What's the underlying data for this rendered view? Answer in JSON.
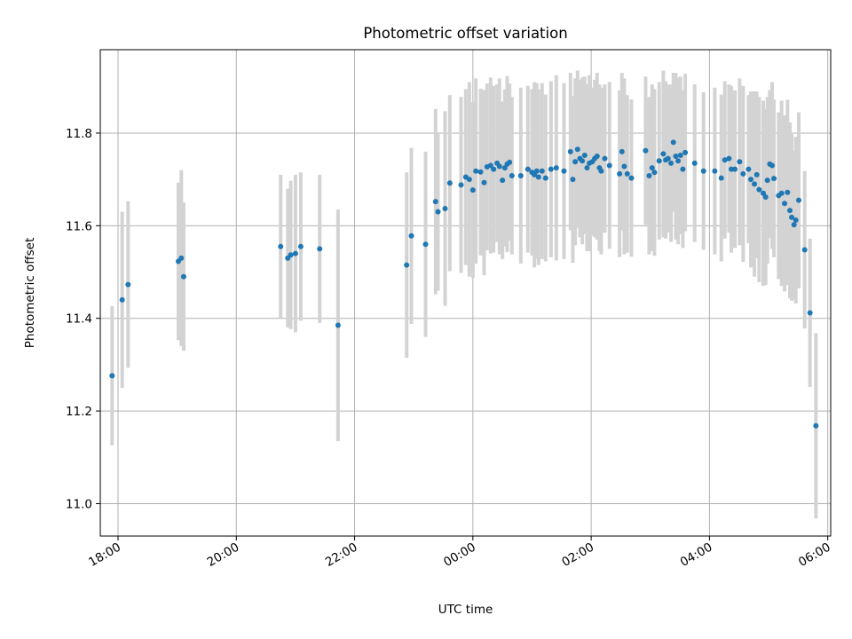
{
  "chart_data": {
    "type": "scatter",
    "title": "Photometric offset variation",
    "xlabel": "UTC time",
    "ylabel": "Photometric offset",
    "x_unit": "hours since 18:00 UTC",
    "xlim": [
      -0.3,
      12.05
    ],
    "ylim": [
      10.93,
      11.98
    ],
    "grid": true,
    "x_ticks": [
      {
        "label": "18:00",
        "value": 0
      },
      {
        "label": "20:00",
        "value": 2
      },
      {
        "label": "22:00",
        "value": 4
      },
      {
        "label": "00:00",
        "value": 6
      },
      {
        "label": "02:00",
        "value": 8
      },
      {
        "label": "04:00",
        "value": 10
      },
      {
        "label": "06:00",
        "value": 12
      }
    ],
    "y_ticks": [
      {
        "label": "11.0",
        "value": 11.0
      },
      {
        "label": "11.2",
        "value": 11.2
      },
      {
        "label": "11.4",
        "value": 11.4
      },
      {
        "label": "11.6",
        "value": 11.6
      },
      {
        "label": "11.8",
        "value": 11.8
      }
    ],
    "points": [
      [
        -0.1,
        11.276,
        0.15
      ],
      [
        0.07,
        11.44,
        0.19
      ],
      [
        0.17,
        11.473,
        0.18
      ],
      [
        1.02,
        11.523,
        0.17
      ],
      [
        1.07,
        11.53,
        0.19
      ],
      [
        1.11,
        11.49,
        0.16
      ],
      [
        2.75,
        11.555,
        0.155
      ],
      [
        2.87,
        11.53,
        0.15
      ],
      [
        2.92,
        11.537,
        0.16
      ],
      [
        3.0,
        11.54,
        0.17
      ],
      [
        3.09,
        11.555,
        0.16
      ],
      [
        3.41,
        11.55,
        0.16
      ],
      [
        3.72,
        11.385,
        0.25
      ],
      [
        4.88,
        11.515,
        0.2
      ],
      [
        4.96,
        11.578,
        0.19
      ],
      [
        5.2,
        11.56,
        0.2
      ],
      [
        5.37,
        11.652,
        0.2
      ],
      [
        5.41,
        11.63,
        0.17
      ],
      [
        5.53,
        11.637,
        0.21
      ],
      [
        5.61,
        11.692,
        0.19
      ],
      [
        5.8,
        11.688,
        0.19
      ],
      [
        5.88,
        11.705,
        0.19
      ],
      [
        5.94,
        11.7,
        0.21
      ],
      [
        6.0,
        11.677,
        0.19
      ],
      [
        6.05,
        11.718,
        0.2
      ],
      [
        6.13,
        11.716,
        0.18
      ],
      [
        6.19,
        11.693,
        0.2
      ],
      [
        6.24,
        11.727,
        0.18
      ],
      [
        6.3,
        11.73,
        0.19
      ],
      [
        6.35,
        11.722,
        0.18
      ],
      [
        6.41,
        11.735,
        0.17
      ],
      [
        6.45,
        11.728,
        0.19
      ],
      [
        6.5,
        11.698,
        0.17
      ],
      [
        6.54,
        11.725,
        0.17
      ],
      [
        6.58,
        11.733,
        0.19
      ],
      [
        6.62,
        11.737,
        0.17
      ],
      [
        6.66,
        11.708,
        0.17
      ],
      [
        6.81,
        11.708,
        0.19
      ],
      [
        6.93,
        11.722,
        0.18
      ],
      [
        7.0,
        11.715,
        0.18
      ],
      [
        7.04,
        11.71,
        0.2
      ],
      [
        7.08,
        11.718,
        0.19
      ],
      [
        7.11,
        11.705,
        0.19
      ],
      [
        7.17,
        11.718,
        0.19
      ],
      [
        7.23,
        11.703,
        0.18
      ],
      [
        7.32,
        11.722,
        0.19
      ],
      [
        7.41,
        11.725,
        0.2
      ],
      [
        7.54,
        11.718,
        0.19
      ],
      [
        7.65,
        11.76,
        0.17
      ],
      [
        7.69,
        11.7,
        0.18
      ],
      [
        7.73,
        11.738,
        0.18
      ],
      [
        7.77,
        11.765,
        0.17
      ],
      [
        7.81,
        11.745,
        0.17
      ],
      [
        7.85,
        11.74,
        0.18
      ],
      [
        7.89,
        11.752,
        0.17
      ],
      [
        7.93,
        11.725,
        0.18
      ],
      [
        7.97,
        11.735,
        0.19
      ],
      [
        8.02,
        11.738,
        0.16
      ],
      [
        8.06,
        11.745,
        0.17
      ],
      [
        8.1,
        11.75,
        0.18
      ],
      [
        8.14,
        11.725,
        0.18
      ],
      [
        8.17,
        11.718,
        0.18
      ],
      [
        8.23,
        11.745,
        0.16
      ],
      [
        8.31,
        11.73,
        0.18
      ],
      [
        8.48,
        11.712,
        0.18
      ],
      [
        8.52,
        11.76,
        0.17
      ],
      [
        8.56,
        11.728,
        0.19
      ],
      [
        8.61,
        11.712,
        0.17
      ],
      [
        8.68,
        11.703,
        0.17
      ],
      [
        8.92,
        11.762,
        0.16
      ],
      [
        8.98,
        11.708,
        0.17
      ],
      [
        9.03,
        11.725,
        0.18
      ],
      [
        9.07,
        11.715,
        0.18
      ],
      [
        9.15,
        11.74,
        0.17
      ],
      [
        9.22,
        11.755,
        0.18
      ],
      [
        9.26,
        11.742,
        0.17
      ],
      [
        9.3,
        11.745,
        0.16
      ],
      [
        9.35,
        11.735,
        0.17
      ],
      [
        9.39,
        11.78,
        0.15
      ],
      [
        9.43,
        11.75,
        0.18
      ],
      [
        9.47,
        11.74,
        0.18
      ],
      [
        9.51,
        11.752,
        0.17
      ],
      [
        9.55,
        11.722,
        0.17
      ],
      [
        9.59,
        11.758,
        0.17
      ],
      [
        9.75,
        11.735,
        0.17
      ],
      [
        9.9,
        11.718,
        0.17
      ],
      [
        10.09,
        11.718,
        0.18
      ],
      [
        10.2,
        11.703,
        0.18
      ],
      [
        10.26,
        11.742,
        0.17
      ],
      [
        10.33,
        11.745,
        0.16
      ],
      [
        10.37,
        11.722,
        0.18
      ],
      [
        10.43,
        11.722,
        0.17
      ],
      [
        10.51,
        11.738,
        0.18
      ],
      [
        10.57,
        11.712,
        0.19
      ],
      [
        10.66,
        11.722,
        0.16
      ],
      [
        10.7,
        11.7,
        0.19
      ],
      [
        10.76,
        11.69,
        0.2
      ],
      [
        10.8,
        11.71,
        0.18
      ],
      [
        10.84,
        11.678,
        0.2
      ],
      [
        10.91,
        11.67,
        0.2
      ],
      [
        10.95,
        11.662,
        0.19
      ],
      [
        10.98,
        11.698,
        0.18
      ],
      [
        11.02,
        11.733,
        0.16
      ],
      [
        11.06,
        11.73,
        0.18
      ],
      [
        11.09,
        11.702,
        0.17
      ],
      [
        11.17,
        11.665,
        0.18
      ],
      [
        11.22,
        11.67,
        0.2
      ],
      [
        11.27,
        11.648,
        0.19
      ],
      [
        11.32,
        11.672,
        0.2
      ],
      [
        11.36,
        11.633,
        0.19
      ],
      [
        11.39,
        11.618,
        0.18
      ],
      [
        11.43,
        11.602,
        0.16
      ],
      [
        11.46,
        11.612,
        0.18
      ],
      [
        11.51,
        11.655,
        0.19
      ],
      [
        11.61,
        11.548,
        0.17
      ],
      [
        11.7,
        11.412,
        0.16
      ],
      [
        11.8,
        11.168,
        0.2
      ]
    ]
  }
}
